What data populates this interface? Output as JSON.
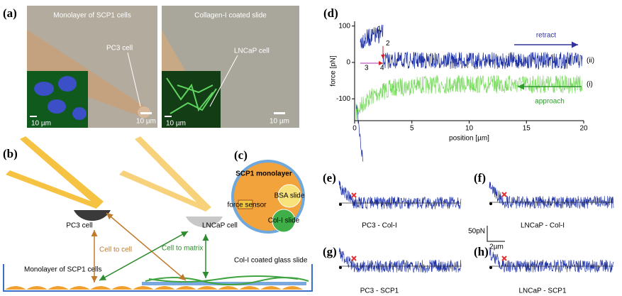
{
  "panels": {
    "a": {
      "label": "(a)",
      "images": [
        {
          "caption": "Monolayer of SCP1 cells",
          "cell": "PC3 cell",
          "scale": "10 µm",
          "inset_scale": "10 µm"
        },
        {
          "caption": "Collagen-I coated slide",
          "cell": "LNCaP cell",
          "scale": "10 µm",
          "inset_scale": "10 µm"
        }
      ]
    },
    "b": {
      "label": "(b)",
      "left_cell": "PC3 cell",
      "right_cell": "LNCaP cell",
      "cell_to_cell": "Cell to cell",
      "cell_to_matrix": "Cell to matrix",
      "slide": "Col-I coated glass slide",
      "monolayer": "Monolayer of SCP1 cells"
    },
    "c": {
      "label": "(c)",
      "monolayer": "SCP1 monolayer",
      "bsa": "BSA slide",
      "sensor": "force sensor",
      "coli": "Col-I slide"
    },
    "d": {
      "label": "(d)",
      "xlabel": "position [µm]",
      "ylabel": "force [pN]",
      "xlim": [
        0,
        20
      ],
      "ylim": [
        -160,
        113
      ],
      "xticks": [
        0,
        5,
        10,
        15,
        20
      ],
      "yticks": [
        -100,
        0,
        100
      ],
      "retract": "retract",
      "approach": "approach",
      "retract_tag": "(ii)",
      "approach_tag": "(i)",
      "steps": [
        "1",
        "2",
        "3",
        "4"
      ]
    },
    "e": {
      "label": "(e)",
      "caption": "PC3 - Col-I"
    },
    "f": {
      "label": "(f)",
      "caption": "LNCaP - Col-I"
    },
    "g": {
      "label": "(g)",
      "caption": "PC3 - SCP1"
    },
    "h": {
      "label": "(h)",
      "caption": "LNCaP - SCP1"
    },
    "scalebar": {
      "force": "50pN",
      "distance": "2µm"
    }
  }
}
